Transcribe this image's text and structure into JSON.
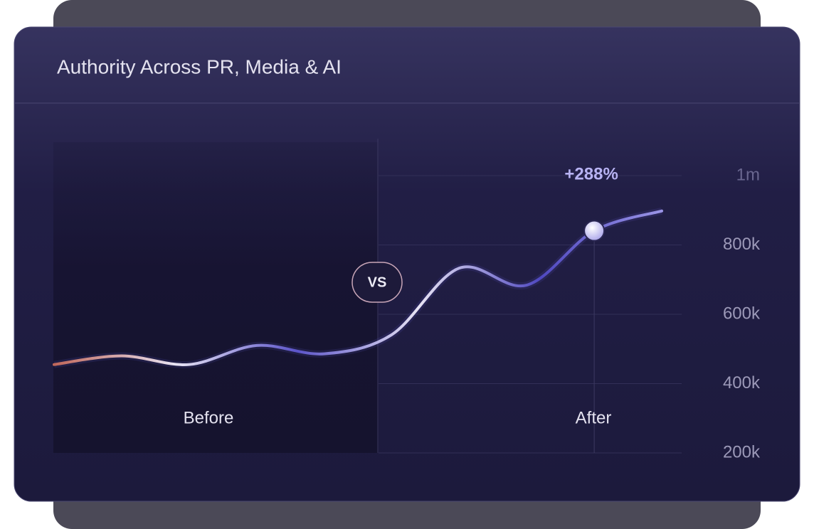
{
  "chart_data": {
    "type": "line",
    "title": "Authority Across PR, Media & AI",
    "categories": [
      null,
      null,
      null,
      null,
      null,
      null,
      null,
      null,
      null,
      null
    ],
    "series": [
      {
        "name": null,
        "color": "#5b54c9",
        "values": [
          455000,
          480000,
          455000,
          510000,
          486000,
          541000,
          733000,
          684000,
          841000,
          898000
        ]
      }
    ],
    "gradient": [
      "#c0675a",
      "#e8e4f4",
      "#5b54c9",
      "#e8e4f4",
      "#4f48c0",
      "#9a94e6"
    ],
    "ylim": [
      200000,
      1000000
    ],
    "yticks": [
      {
        "value": 200000,
        "label": "200k"
      },
      {
        "value": 400000,
        "label": "400k"
      },
      {
        "value": 600000,
        "label": "600k"
      },
      {
        "value": 800000,
        "label": "800k"
      },
      {
        "value": 1000000,
        "label": "1m"
      }
    ],
    "grid": true,
    "annotation": {
      "text": "+288%",
      "index": 8
    },
    "divider_label": "VS",
    "region_labels": [
      "Before",
      "After"
    ]
  }
}
